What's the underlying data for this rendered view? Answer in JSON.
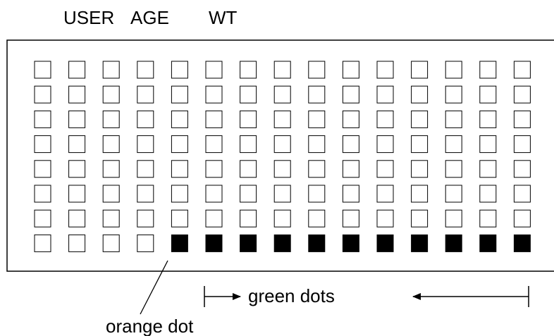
{
  "header": {
    "labels": [
      "USER",
      "AGE",
      "WT"
    ]
  },
  "annotations": {
    "orange_dot": "orange dot",
    "green_dots": "green dots"
  }
}
